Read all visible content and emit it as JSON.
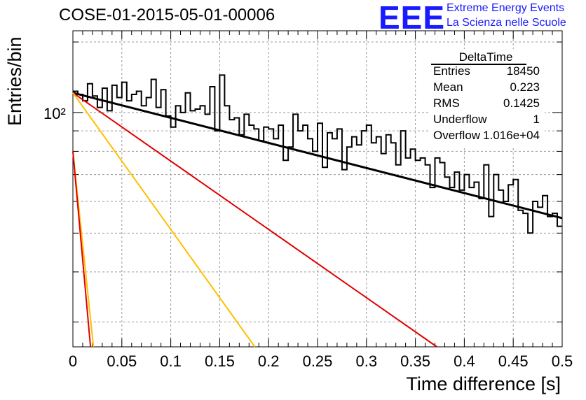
{
  "chart_data": {
    "type": "line",
    "title": "COSE-01-2015-05-01-00006",
    "xlabel": "Time difference [s]",
    "ylabel": "Entries/bin",
    "xlim": [
      0,
      0.5
    ],
    "ylim": [
      26,
      160
    ],
    "yscale": "log",
    "grid": true,
    "x_ticks": [
      "0",
      "0.05",
      "0.1",
      "0.15",
      "0.2",
      "0.25",
      "0.3",
      "0.35",
      "0.4",
      "0.45",
      "0.5"
    ],
    "y_tick_label": "10²",
    "histogram": {
      "name": "DeltaTime",
      "bin_width": 0.005,
      "values": [
        113,
        111,
        107,
        118,
        110,
        103,
        115,
        101,
        117,
        109,
        119,
        107,
        111,
        113,
        104,
        109,
        121,
        103,
        114,
        98,
        92,
        104,
        100,
        112,
        101,
        102,
        104,
        99,
        116,
        90,
        124,
        104,
        96,
        97,
        88,
        99,
        93,
        91,
        85,
        92,
        91,
        86,
        93,
        76,
        82,
        99,
        90,
        93,
        86,
        80,
        94,
        73,
        89,
        86,
        91,
        72,
        82,
        87,
        83,
        90,
        93,
        84,
        87,
        79,
        88,
        84,
        74,
        90,
        77,
        81,
        76,
        77,
        74,
        65,
        77,
        75,
        69,
        65,
        71,
        64,
        70,
        65,
        67,
        61,
        74,
        55,
        70,
        64,
        60,
        66,
        68,
        57,
        56,
        50,
        60,
        58,
        62,
        55,
        56,
        52
      ]
    },
    "fits": [
      {
        "color": "#000000",
        "y0": 112,
        "y_end": 54.5,
        "x_end": 0.5
      },
      {
        "color": "#e00000",
        "y0": 112,
        "y_end": 26,
        "x_end": 0.372
      },
      {
        "color": "#ffc000",
        "y0": 112,
        "y_end": 26,
        "x_end": 0.186
      },
      {
        "color": "#ffc000",
        "y0": 80,
        "y_end": 26,
        "x_end": 0.021
      },
      {
        "color": "#e00000",
        "y0": 80,
        "y_end": 26,
        "x_end": 0.018
      }
    ]
  },
  "stats": {
    "title": "DeltaTime",
    "rows": [
      {
        "label": "Entries",
        "value": "18450"
      },
      {
        "label": "Mean",
        "value": "0.223"
      },
      {
        "label": "RMS",
        "value": "0.1425"
      },
      {
        "label": "Underflow",
        "value": "1"
      },
      {
        "label": "Overflow",
        "value": "1.016e+04"
      }
    ]
  },
  "logo": {
    "mark": "EEE",
    "line1": "Extreme Energy Events",
    "line2": "La Scienza nelle Scuole"
  }
}
